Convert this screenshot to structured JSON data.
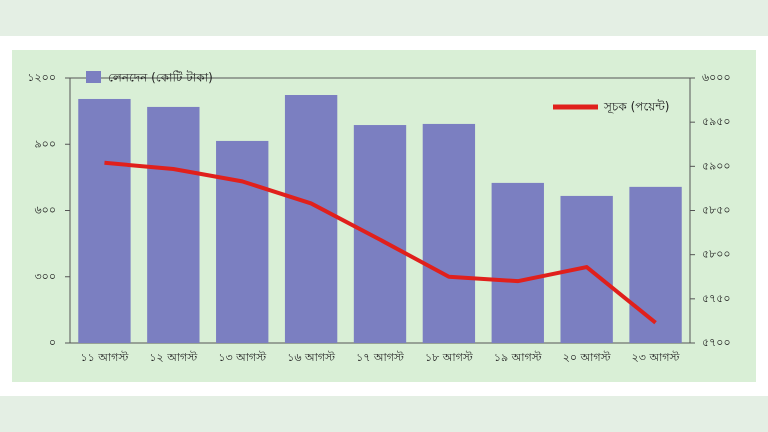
{
  "chart_data": {
    "type": "bar_line",
    "categories": [
      "১১ আগস্ট",
      "১২ আগস্ট",
      "১৩ আগস্ট",
      "১৬ আগস্ট",
      "১৭ আগস্ট",
      "১৮ আগস্ট",
      "১৯ আগস্ট",
      "২০ আগস্ট",
      "২৩ আগস্ট"
    ],
    "series": [
      {
        "name": "লেনদেন (কোটি টাকা)",
        "type": "bar",
        "color": "#7b7fc1",
        "values": [
          1105,
          1069,
          915,
          1123,
          987,
          992,
          725,
          666,
          707
        ]
      },
      {
        "name": "সূচক (পয়েন্ট)",
        "type": "line",
        "axis": "y2",
        "color": "#e0201c",
        "values": [
          5904,
          5897,
          5883,
          5858,
          5817,
          5775,
          5770,
          5786,
          5723
        ]
      }
    ],
    "ylim": [
      0,
      1200
    ],
    "yticks": [
      {
        "value": 0,
        "label": "০"
      },
      {
        "value": 300,
        "label": "৩০০"
      },
      {
        "value": 600,
        "label": "৬০০"
      },
      {
        "value": 900,
        "label": "৯০০"
      },
      {
        "value": 1200,
        "label": "১২০০"
      }
    ],
    "y2lim": [
      5700,
      6000
    ],
    "y2ticks": [
      {
        "value": 5700,
        "label": "৫৭০০"
      },
      {
        "value": 5750,
        "label": "৫৭৫০"
      },
      {
        "value": 5800,
        "label": "৫৮০০"
      },
      {
        "value": 5850,
        "label": "৫৮৫০"
      },
      {
        "value": 5900,
        "label": "৫৯০০"
      },
      {
        "value": 5950,
        "label": "৫৯৫০"
      },
      {
        "value": 6000,
        "label": "৬০০০"
      }
    ],
    "grid": false
  }
}
